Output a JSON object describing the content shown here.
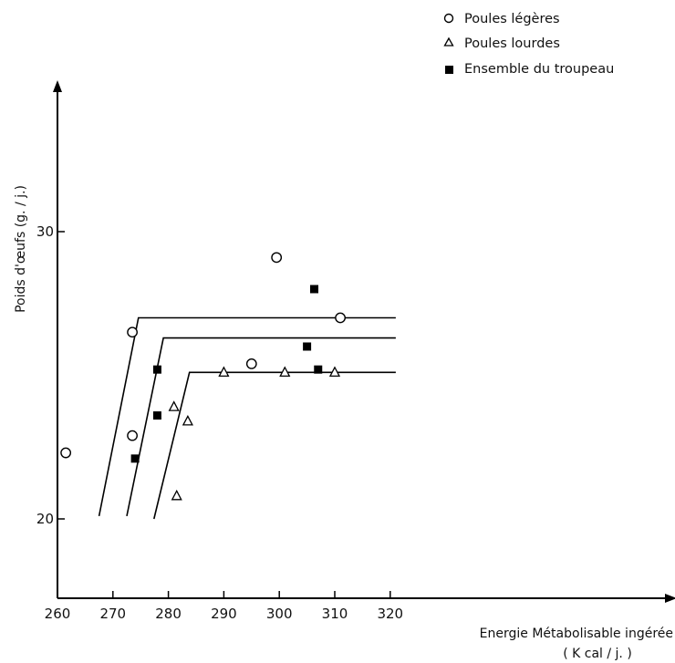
{
  "chart_data": {
    "type": "scatter",
    "xlabel_line1": "Energie Métabolisable ingérée",
    "xlabel_line2": "( K cal / j. )",
    "ylabel": "Poids d'œufs (g. / j.)",
    "xlim": [
      260,
      325
    ],
    "ylim": [
      17,
      35
    ],
    "x_ticks": [
      260,
      270,
      280,
      290,
      300,
      310,
      320
    ],
    "y_ticks": [
      20,
      30
    ],
    "legend_position": "top-right",
    "series": [
      {
        "name": "Poules légères",
        "marker": "circle-open",
        "points": [
          [
            261.5,
            22.3
          ],
          [
            273.5,
            26.5
          ],
          [
            273.5,
            22.9
          ],
          [
            295,
            25.4
          ],
          [
            299.5,
            29.1
          ],
          [
            311,
            27.0
          ]
        ]
      },
      {
        "name": "Poules lourdes",
        "marker": "triangle-open",
        "points": [
          [
            281,
            23.9
          ],
          [
            281.5,
            20.8
          ],
          [
            283.5,
            23.4
          ],
          [
            290,
            25.1
          ],
          [
            301,
            25.1
          ],
          [
            310,
            25.1
          ]
        ]
      },
      {
        "name": "Ensemble du troupeau",
        "marker": "square-filled",
        "points": [
          [
            274,
            22.1
          ],
          [
            278,
            25.2
          ],
          [
            278,
            23.6
          ],
          [
            305,
            26.0
          ],
          [
            306.3,
            28.0
          ],
          [
            307,
            25.2
          ]
        ]
      }
    ],
    "fit_lines": [
      {
        "points": [
          [
            267.5,
            20.1
          ],
          [
            274.6,
            27.0
          ],
          [
            321,
            27.0
          ]
        ]
      },
      {
        "points": [
          [
            272.5,
            20.1
          ],
          [
            279.1,
            26.3
          ],
          [
            321,
            26.3
          ]
        ]
      },
      {
        "points": [
          [
            277.4,
            20.0
          ],
          [
            283.8,
            25.1
          ],
          [
            321,
            25.1
          ]
        ]
      }
    ]
  }
}
